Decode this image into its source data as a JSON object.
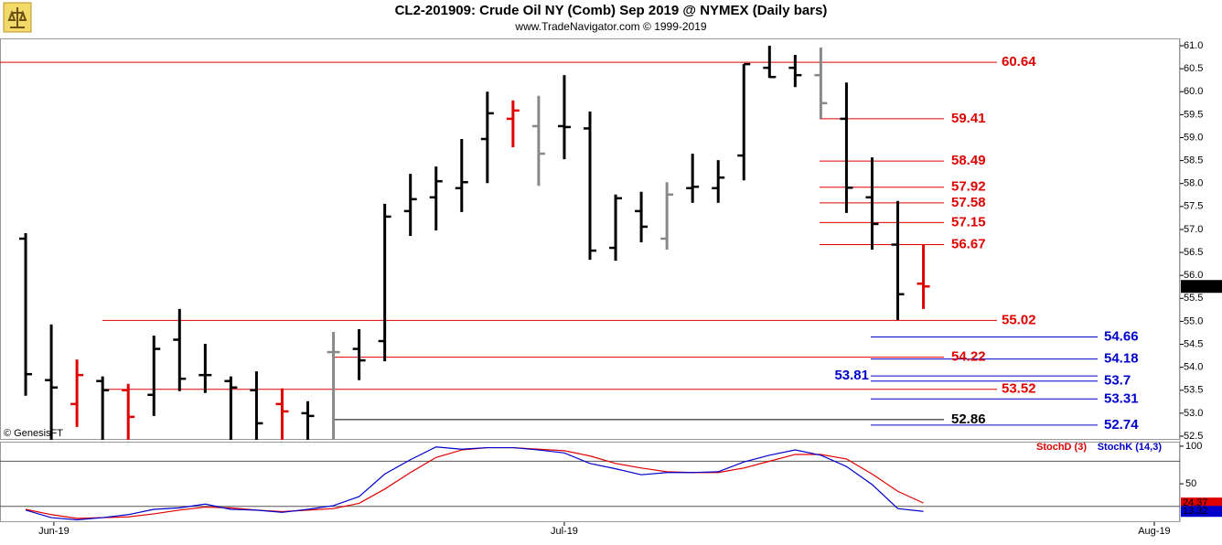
{
  "chart_data": {
    "type": "ohlc",
    "title": "CL2-201909:  Crude Oil NY (Comb) Sep 2019 @ NYMEX  (Daily bars)",
    "subtitle": "www.TradeNavigator.com © 1999-2019",
    "source_note": "© GenesisFT",
    "xlim": [
      -1,
      45
    ],
    "xticks": [
      {
        "value": 1.1,
        "label": "Jun-19"
      },
      {
        "value": 21,
        "label": "Jul-19"
      },
      {
        "value": 44,
        "label": "Aug-19"
      }
    ],
    "ylim": [
      52.42,
      61.16
    ],
    "yticks": [
      {
        "value": 61,
        "label": "61.0"
      },
      60.5,
      {
        "value": 60,
        "label": "60.0"
      },
      59.5,
      {
        "value": 59,
        "label": "59.0"
      },
      58.5,
      {
        "value": 58,
        "label": "58.0"
      },
      57.5,
      {
        "value": 57,
        "label": "57.0"
      },
      56.5,
      {
        "value": 56,
        "label": "56.0"
      },
      55.5,
      {
        "value": 55,
        "label": "55.0"
      },
      54.5,
      {
        "value": 54,
        "label": "54.0"
      },
      53.5,
      {
        "value": 53,
        "label": "53.0"
      },
      52.5
    ],
    "colors": {
      "up": "#000000",
      "down": "#e00000",
      "neutral": "#888888"
    },
    "bars": [
      {
        "o": 56.8,
        "h": 56.92,
        "l": 53.38,
        "c": 53.85,
        "color": "up"
      },
      {
        "o": 53.72,
        "h": 54.93,
        "l": 52.42,
        "c": 53.56,
        "color": "up"
      },
      {
        "o": 53.2,
        "h": 54.17,
        "l": 52.7,
        "c": 53.83,
        "color": "down"
      },
      {
        "o": 53.7,
        "h": 53.8,
        "l": 52.42,
        "c": 53.5,
        "color": "up"
      },
      {
        "o": 53.5,
        "h": 53.64,
        "l": 52.42,
        "c": 52.92,
        "color": "down"
      },
      {
        "o": 53.4,
        "h": 54.69,
        "l": 52.94,
        "c": 54.4,
        "color": "up"
      },
      {
        "o": 54.6,
        "h": 55.27,
        "l": 53.48,
        "c": 53.75,
        "color": "up"
      },
      {
        "o": 53.83,
        "h": 54.51,
        "l": 53.44,
        "c": 53.83,
        "color": "up"
      },
      {
        "o": 53.7,
        "h": 53.8,
        "l": 52.42,
        "c": 53.56,
        "color": "up"
      },
      {
        "o": 53.5,
        "h": 53.91,
        "l": 52.42,
        "c": 52.78,
        "color": "up"
      },
      {
        "o": 53.2,
        "h": 53.54,
        "l": 52.42,
        "c": 53.04,
        "color": "down"
      },
      {
        "o": 53.0,
        "h": 53.26,
        "l": 52.42,
        "c": 52.94,
        "color": "up"
      },
      {
        "o": 54.33,
        "h": 54.77,
        "l": 52.42,
        "c": 54.33,
        "color": "neutral"
      },
      {
        "o": 54.4,
        "h": 54.83,
        "l": 53.72,
        "c": 54.15,
        "color": "up"
      },
      {
        "o": 54.57,
        "h": 57.56,
        "l": 54.13,
        "c": 57.28,
        "color": "up"
      },
      {
        "o": 57.4,
        "h": 58.21,
        "l": 56.86,
        "c": 57.66,
        "color": "up"
      },
      {
        "o": 57.7,
        "h": 58.37,
        "l": 56.98,
        "c": 58.05,
        "color": "up"
      },
      {
        "o": 57.9,
        "h": 58.97,
        "l": 57.38,
        "c": 58.03,
        "color": "up"
      },
      {
        "o": 58.97,
        "h": 60.0,
        "l": 58.01,
        "c": 59.53,
        "color": "up"
      },
      {
        "o": 59.41,
        "h": 59.81,
        "l": 58.79,
        "c": 59.59,
        "color": "down"
      },
      {
        "o": 59.25,
        "h": 59.91,
        "l": 57.95,
        "c": 58.65,
        "color": "neutral"
      },
      {
        "o": 59.25,
        "h": 60.36,
        "l": 58.53,
        "c": 59.23,
        "color": "up"
      },
      {
        "o": 59.2,
        "h": 59.57,
        "l": 56.34,
        "c": 56.54,
        "color": "up"
      },
      {
        "o": 56.6,
        "h": 57.76,
        "l": 56.32,
        "c": 57.68,
        "color": "up"
      },
      {
        "o": 57.4,
        "h": 57.82,
        "l": 56.72,
        "c": 57.06,
        "color": "up"
      },
      {
        "o": 56.8,
        "h": 58.03,
        "l": 56.56,
        "c": 57.76,
        "color": "neutral"
      },
      {
        "o": 57.9,
        "h": 58.65,
        "l": 57.58,
        "c": 57.93,
        "color": "up"
      },
      {
        "o": 57.9,
        "h": 58.51,
        "l": 57.58,
        "c": 58.13,
        "color": "up"
      },
      {
        "o": 58.61,
        "h": 60.6,
        "l": 58.07,
        "c": 60.6,
        "color": "up"
      },
      {
        "o": 60.52,
        "h": 61.0,
        "l": 60.3,
        "c": 60.32,
        "color": "up"
      },
      {
        "o": 60.52,
        "h": 60.8,
        "l": 60.1,
        "c": 60.36,
        "color": "up"
      },
      {
        "o": 60.36,
        "h": 60.96,
        "l": 59.41,
        "c": 59.75,
        "color": "neutral"
      },
      {
        "o": 59.41,
        "h": 60.2,
        "l": 57.36,
        "c": 57.91,
        "color": "up"
      },
      {
        "o": 57.7,
        "h": 58.57,
        "l": 56.56,
        "c": 57.12,
        "color": "up"
      },
      {
        "o": 56.67,
        "h": 57.62,
        "l": 55.03,
        "c": 55.59,
        "color": "up"
      },
      {
        "o": 55.82,
        "h": 56.66,
        "l": 55.27,
        "c": 55.76,
        "color": "down"
      }
    ],
    "levels": [
      {
        "value": 60.64,
        "color": "#e00000"
      },
      {
        "value": 59.41,
        "color": "#e00000"
      },
      {
        "value": 58.49,
        "color": "#e00000"
      },
      {
        "value": 57.92,
        "color": "#e00000"
      },
      {
        "value": 57.58,
        "color": "#e00000"
      },
      {
        "value": 57.15,
        "color": "#e00000"
      },
      {
        "value": 56.67,
        "color": "#e00000"
      },
      {
        "value": 55.02,
        "color": "#e00000"
      },
      {
        "value": 54.22,
        "color": "#e00000"
      },
      {
        "value": 53.52,
        "color": "#e00000"
      },
      {
        "value": 52.86,
        "color": "#000000"
      },
      {
        "value": 54.66,
        "color": "#0000cc"
      },
      {
        "value": 54.18,
        "color": "#0000cc"
      },
      {
        "value": 53.81,
        "color": "#0000cc"
      },
      {
        "value": 53.7,
        "color": "#0000cc"
      },
      {
        "value": 53.31,
        "color": "#0000cc"
      },
      {
        "value": 52.74,
        "color": "#0000cc"
      }
    ],
    "stochastic": {
      "ylim": [
        -1,
        106
      ],
      "yticks": [
        100,
        50
      ],
      "reference_lines": [
        80,
        20
      ],
      "series": [
        {
          "name": "StochD (3)",
          "color": "#e00000",
          "values": [
            16,
            9,
            4,
            5,
            6,
            10,
            15,
            19,
            18,
            15,
            13,
            15,
            17,
            24,
            43,
            65,
            85,
            95,
            98,
            98,
            96,
            94,
            87,
            77,
            71,
            66,
            65,
            65,
            71,
            80,
            89,
            89,
            83,
            63,
            40,
            24.37
          ]
        },
        {
          "name": "StochK (14,3)",
          "color": "#0000cc",
          "values": [
            15,
            5,
            2,
            5,
            9,
            16,
            18,
            23,
            16,
            15,
            12,
            16,
            21,
            33,
            63,
            82,
            99,
            96,
            98,
            98,
            95,
            91,
            77,
            70,
            62,
            65,
            65,
            66,
            79,
            88,
            95,
            88,
            73,
            49,
            17,
            13.32
          ]
        }
      ]
    }
  }
}
